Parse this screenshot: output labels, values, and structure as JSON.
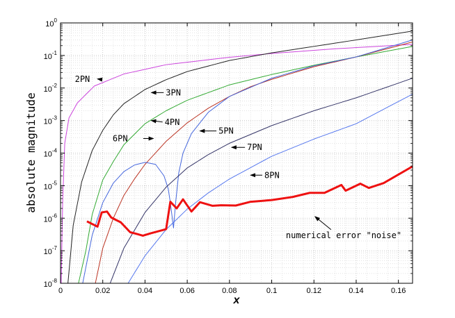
{
  "chart_data": {
    "type": "line",
    "xlabel": "x",
    "ylabel": "absolute magnitude",
    "xlim": [
      0,
      0.1667
    ],
    "ylim": [
      1e-08,
      1
    ],
    "yscale": "log",
    "grid": true,
    "x_ticks": [
      "0",
      "0.02",
      "0.04",
      "0.06",
      "0.08",
      "0.1",
      "0.12",
      "0.14",
      "0.16"
    ],
    "x_tick_values": [
      0,
      0.02,
      0.04,
      0.06,
      0.08,
      0.1,
      0.12,
      0.14,
      0.16
    ],
    "y_ticks": [
      {
        "base": "10",
        "exp": "0",
        "value": 1
      },
      {
        "base": "10",
        "exp": "-1",
        "value": 0.1
      },
      {
        "base": "10",
        "exp": "-2",
        "value": 0.01
      },
      {
        "base": "10",
        "exp": "-3",
        "value": 0.001
      },
      {
        "base": "10",
        "exp": "-4",
        "value": 0.0001
      },
      {
        "base": "10",
        "exp": "-5",
        "value": 1e-05
      },
      {
        "base": "10",
        "exp": "-6",
        "value": 1e-06
      },
      {
        "base": "10",
        "exp": "-7",
        "value": 1e-07
      },
      {
        "base": "10",
        "exp": "-8",
        "value": 1e-08
      }
    ],
    "series": [
      {
        "name": "2PN",
        "color": "#cc44dd",
        "width": 1,
        "points": [
          [
            0.0003,
            1e-08
          ],
          [
            0.001,
            3e-06
          ],
          [
            0.002,
            0.0002
          ],
          [
            0.004,
            0.0012
          ],
          [
            0.008,
            0.0035
          ],
          [
            0.016,
            0.0115
          ],
          [
            0.03,
            0.027
          ],
          [
            0.05,
            0.052
          ],
          [
            0.08,
            0.088
          ],
          [
            0.1,
            0.115
          ],
          [
            0.13,
            0.16
          ],
          [
            0.1667,
            0.22
          ]
        ]
      },
      {
        "name": "3PN",
        "color": "#222222",
        "width": 1,
        "points": [
          [
            0.0035,
            1e-08
          ],
          [
            0.006,
            6e-07
          ],
          [
            0.01,
            1.3e-05
          ],
          [
            0.015,
            0.00012
          ],
          [
            0.02,
            0.0005
          ],
          [
            0.025,
            0.0015
          ],
          [
            0.03,
            0.0033
          ],
          [
            0.04,
            0.009
          ],
          [
            0.05,
            0.018
          ],
          [
            0.06,
            0.032
          ],
          [
            0.08,
            0.07
          ],
          [
            0.1,
            0.12
          ],
          [
            0.12,
            0.19
          ],
          [
            0.14,
            0.3
          ],
          [
            0.1667,
            0.56
          ]
        ]
      },
      {
        "name": "4PN",
        "color": "#33aa33",
        "width": 1,
        "points": [
          [
            0.0085,
            1e-08
          ],
          [
            0.012,
            1e-07
          ],
          [
            0.015,
            1.3e-06
          ],
          [
            0.02,
            1.5e-05
          ],
          [
            0.025,
            5.5e-05
          ],
          [
            0.03,
            0.00018
          ],
          [
            0.04,
            0.0008
          ],
          [
            0.05,
            0.002
          ],
          [
            0.06,
            0.0042
          ],
          [
            0.08,
            0.0125
          ],
          [
            0.1,
            0.026
          ],
          [
            0.12,
            0.05
          ],
          [
            0.14,
            0.09
          ],
          [
            0.1667,
            0.19
          ]
        ]
      },
      {
        "name": "6PN",
        "color": "#bb3322",
        "width": 1,
        "points": [
          [
            0.0165,
            1e-08
          ],
          [
            0.02,
            1.2e-07
          ],
          [
            0.025,
            1e-06
          ],
          [
            0.03,
            5e-06
          ],
          [
            0.035,
            1.6e-05
          ],
          [
            0.04,
            4.5e-05
          ],
          [
            0.05,
            0.00023
          ],
          [
            0.06,
            0.00085
          ],
          [
            0.07,
            0.0024
          ],
          [
            0.08,
            0.0055
          ],
          [
            0.09,
            0.011
          ],
          [
            0.1,
            0.0185
          ],
          [
            0.12,
            0.045
          ],
          [
            0.14,
            0.09
          ],
          [
            0.1667,
            0.26
          ]
        ]
      },
      {
        "name": "5PN",
        "color": "#4466dd",
        "width": 1,
        "points": [
          [
            0.0105,
            1e-08
          ],
          [
            0.015,
            3e-07
          ],
          [
            0.02,
            3e-06
          ],
          [
            0.025,
            1.2e-05
          ],
          [
            0.03,
            2.7e-05
          ],
          [
            0.035,
            4.3e-05
          ],
          [
            0.04,
            5.2e-05
          ],
          [
            0.045,
            4.5e-05
          ],
          [
            0.049,
            2e-05
          ],
          [
            0.051,
            8e-06
          ],
          [
            0.052,
            3e-06
          ],
          [
            0.0535,
            5e-07
          ],
          [
            0.0545,
            3e-06
          ],
          [
            0.056,
            2.5e-05
          ],
          [
            0.058,
            0.0001
          ],
          [
            0.062,
            0.0004
          ],
          [
            0.07,
            0.0018
          ],
          [
            0.08,
            0.0055
          ],
          [
            0.1,
            0.02
          ],
          [
            0.12,
            0.048
          ],
          [
            0.14,
            0.09
          ],
          [
            0.1667,
            0.3
          ]
        ]
      },
      {
        "name": "7PN",
        "color": "#333366",
        "width": 1,
        "points": [
          [
            0.0235,
            1e-08
          ],
          [
            0.03,
            1.2e-07
          ],
          [
            0.04,
            1.5e-06
          ],
          [
            0.05,
            9e-06
          ],
          [
            0.06,
            3.5e-05
          ],
          [
            0.07,
            9e-05
          ],
          [
            0.08,
            0.0002
          ],
          [
            0.1,
            0.0007
          ],
          [
            0.12,
            0.002
          ],
          [
            0.14,
            0.005
          ],
          [
            0.1667,
            0.02
          ]
        ]
      },
      {
        "name": "8PN",
        "color": "#5577ee",
        "width": 1,
        "points": [
          [
            0.032,
            1e-08
          ],
          [
            0.04,
            7e-08
          ],
          [
            0.05,
            4.5e-07
          ],
          [
            0.06,
            1.9e-06
          ],
          [
            0.07,
            6e-06
          ],
          [
            0.08,
            1.6e-05
          ],
          [
            0.1,
            8e-05
          ],
          [
            0.12,
            0.00027
          ],
          [
            0.14,
            0.0008
          ],
          [
            0.1667,
            0.0065
          ]
        ]
      },
      {
        "name": "numerical error \"noise\"",
        "color": "#ee1111",
        "width": 3,
        "points": [
          [
            0.0125,
            8e-07
          ],
          [
            0.0175,
            5.5e-07
          ],
          [
            0.0195,
            1.5e-06
          ],
          [
            0.022,
            1.6e-06
          ],
          [
            0.024,
            1.05e-06
          ],
          [
            0.026,
            9e-07
          ],
          [
            0.0285,
            7.5e-07
          ],
          [
            0.033,
            3.7e-07
          ],
          [
            0.036,
            3.3e-07
          ],
          [
            0.039,
            2.9e-07
          ],
          [
            0.0425,
            3.4e-07
          ],
          [
            0.05,
            4.6e-07
          ],
          [
            0.052,
            3.2e-06
          ],
          [
            0.055,
            2e-06
          ],
          [
            0.058,
            3.8e-06
          ],
          [
            0.062,
            1.6e-06
          ],
          [
            0.066,
            3.1e-06
          ],
          [
            0.072,
            2.4e-06
          ],
          [
            0.076,
            2.5e-06
          ],
          [
            0.083,
            2.45e-06
          ],
          [
            0.09,
            3.2e-06
          ],
          [
            0.1,
            3.6e-06
          ],
          [
            0.11,
            4.5e-06
          ],
          [
            0.118,
            6e-06
          ],
          [
            0.125,
            6e-06
          ],
          [
            0.133,
            1.05e-05
          ],
          [
            0.135,
            7e-06
          ],
          [
            0.142,
            1.15e-05
          ],
          [
            0.146,
            8.5e-06
          ],
          [
            0.153,
            1.2e-05
          ],
          [
            0.1667,
            3.9e-05
          ]
        ]
      }
    ],
    "annotations": [
      {
        "text": "2PN",
        "x": 0.016,
        "y": 0.0185
      },
      {
        "text": "3PN",
        "x": 0.0495,
        "y": 0.0072
      },
      {
        "text": "4PN",
        "x": 0.049,
        "y": 0.0009
      },
      {
        "text": "6PN",
        "x": 0.0385,
        "y": 0.00028
      },
      {
        "text": "5PN",
        "x": 0.0745,
        "y": 0.00048
      },
      {
        "text": "7PN",
        "x": 0.088,
        "y": 0.00015
      },
      {
        "text": "8PN",
        "x": 0.0962,
        "y": 2.1e-05
      },
      {
        "text": "numerical error \"noise\"",
        "x": 0.1347,
        "y": 3e-07
      }
    ]
  }
}
